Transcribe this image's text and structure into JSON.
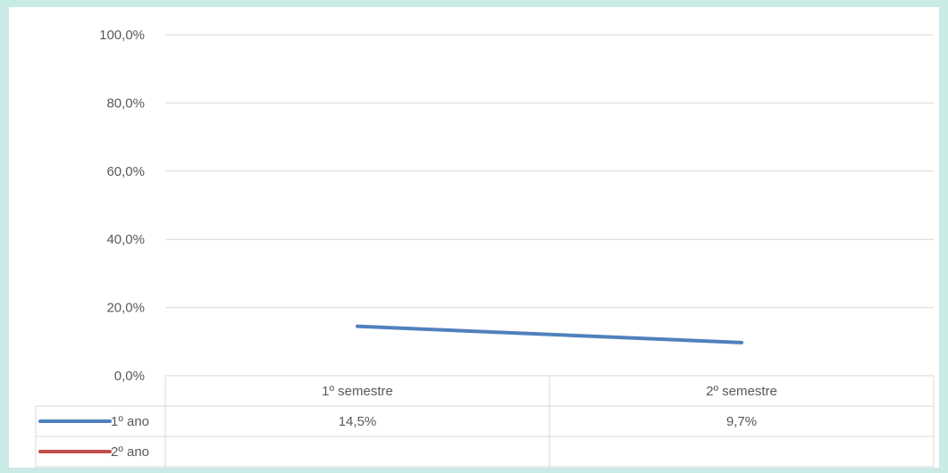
{
  "chart_data": {
    "type": "line",
    "categories": [
      "1º semestre",
      "2º semestre"
    ],
    "series": [
      {
        "name": "1º ano",
        "values": [
          14.5,
          9.7
        ],
        "labels": [
          "14,5%",
          "9,7%"
        ],
        "color": "#4f81bd"
      },
      {
        "name": "2º ano",
        "values": [
          null,
          null
        ],
        "labels": [
          "",
          ""
        ],
        "color": "#c0504d"
      }
    ],
    "y_ticks": [
      "0,0%",
      "20,0%",
      "40,0%",
      "60,0%",
      "80,0%",
      "100,0%"
    ],
    "ylim": [
      0,
      100
    ],
    "grid": true,
    "legend": "data table"
  }
}
